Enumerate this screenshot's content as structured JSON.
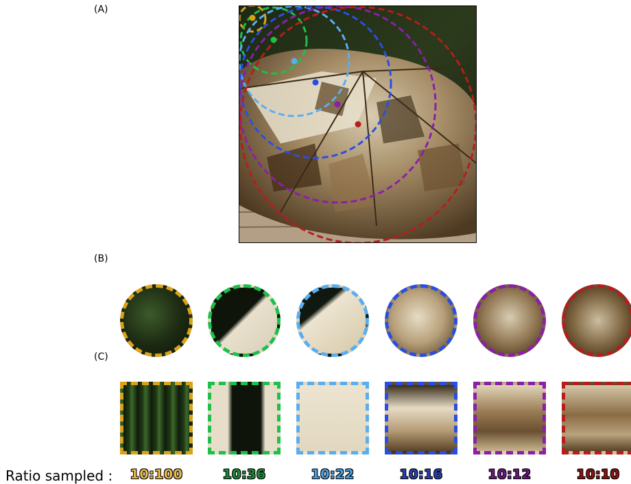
{
  "panels": {
    "a_label": "(A)",
    "b_label": "(B)",
    "c_label": "(C)"
  },
  "colors": {
    "gold": "#d9a21b",
    "green": "#1fbf4a",
    "light_blue": "#5aaef0",
    "blue": "#2a4fe0",
    "purple": "#8b1fa8",
    "red": "#b81c1c"
  },
  "ratio_caption": "Ratio sampled :",
  "ratios": [
    {
      "label": "10:100",
      "color": "#e8b84a"
    },
    {
      "label": "10:36",
      "color": "#1f8a3a"
    },
    {
      "label": "10:22",
      "color": "#4aa0e0"
    },
    {
      "label": "10:16",
      "color": "#2a3fb0"
    },
    {
      "label": "10:12",
      "color": "#6a1a80"
    },
    {
      "label": "10:10",
      "color": "#8a1414"
    }
  ],
  "image_subject": "patterned umbrella photo"
}
